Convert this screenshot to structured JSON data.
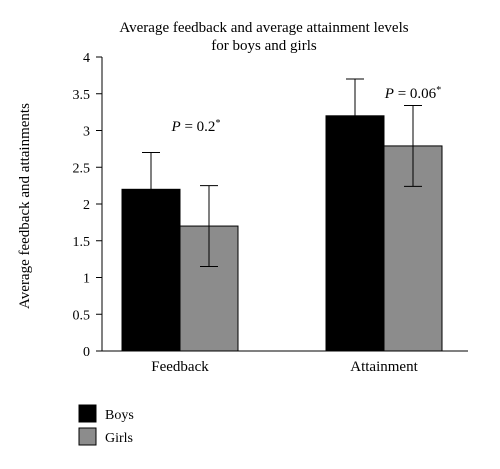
{
  "chart_data": {
    "type": "bar",
    "title_line1": "Average feedback and average attainment levels",
    "title_line2": "for boys and girls",
    "xlabel": "",
    "ylabel": "Average feedback and attainments",
    "ylim": [
      0,
      4
    ],
    "yticks": [
      "0",
      "0.5",
      "1",
      "1.5",
      "2",
      "2.5",
      "3",
      "3.5",
      "4"
    ],
    "grid": false,
    "legend_position": "bottom-left",
    "categories": [
      "Feedback",
      "Attainment"
    ],
    "series": [
      {
        "name": "Boys",
        "color": "#000000",
        "values": [
          2.2,
          3.2
        ],
        "errors": [
          0.5,
          0.5
        ]
      },
      {
        "name": "Girls",
        "color": "#8c8c8c",
        "values": [
          1.7,
          2.79
        ],
        "errors": [
          0.55,
          0.55
        ]
      }
    ],
    "annotations": [
      {
        "category": "Feedback",
        "p_label": "P",
        "value_text": " = 0.2",
        "star": "*"
      },
      {
        "category": "Attainment",
        "p_label": "P",
        "value_text": " = 0.06",
        "star": "*"
      }
    ]
  }
}
